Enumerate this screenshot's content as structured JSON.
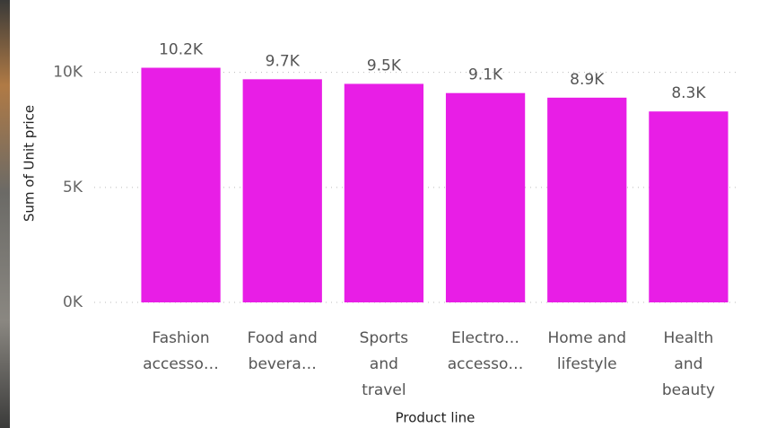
{
  "chart_data": {
    "type": "bar",
    "y_label": "Sum of Unit price",
    "x_label": "Product line",
    "categories": [
      "Fashion accesso…",
      "Food and bevera…",
      "Sports and travel",
      "Electro… accesso…",
      "Home and lifestyle",
      "Health and beauty"
    ],
    "values": [
      10200,
      9700,
      9500,
      9100,
      8900,
      8300
    ],
    "value_labels": [
      "10.2K",
      "9.7K",
      "9.5K",
      "9.1K",
      "8.9K",
      "8.3K"
    ],
    "color": "#e81ee6",
    "ylim": [
      0,
      11000
    ],
    "yticks": [
      {
        "value": 0,
        "label": "0K"
      },
      {
        "value": 5000,
        "label": "5K"
      },
      {
        "value": 10000,
        "label": "10K"
      }
    ],
    "grid": true
  }
}
